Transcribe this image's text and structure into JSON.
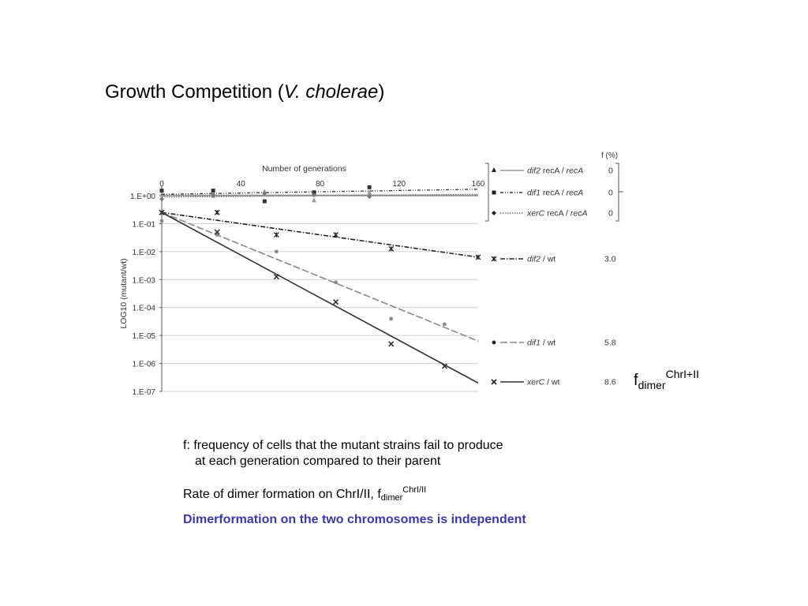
{
  "title": {
    "prefix": "Growth Competition (",
    "italic": "V. cholerae",
    "suffix": ")"
  },
  "fdimer_label": {
    "base": "f",
    "sub": "dimer",
    "sup": "ChrI+II"
  },
  "notes": {
    "line1": "f: frequency of cells that the mutant strains fail to produce",
    "line2": "at each generation compared to their parent"
  },
  "rate": {
    "text": "Rate of dimer formation on ChrI/II,  f",
    "sub": "dimer",
    "sup": "ChrI/II"
  },
  "conclusion": "Dimerformation on the two chromosomes is independent",
  "colors": {
    "conclusion": "#3a3aa0",
    "grid": "#d0d0d0",
    "dark": "#333333",
    "mid": "#888888"
  },
  "chart_data": {
    "type": "scatter",
    "xlabel": "Number of generations",
    "ylabel": "LOG10 (mutant/wt)",
    "xlim": [
      0,
      160
    ],
    "ylim": [
      -7,
      0.3
    ],
    "x_ticks": [
      0,
      40,
      80,
      120,
      160
    ],
    "y_ticks": [
      0,
      -1,
      -2,
      -3,
      -4,
      -5,
      -6,
      -7
    ],
    "y_tick_labels": [
      "1.E+00",
      "1.E-01",
      "1.E-02",
      "1.E-03",
      "1.E-04",
      "1.E-05",
      "1.E-06",
      "1.E-07"
    ],
    "legend_header": "f (%)",
    "grid": true,
    "series": [
      {
        "name_italic": "dif2",
        "name_rest": " recA / recA",
        "name_italic2": "recA",
        "f": "0",
        "marker": "triangle",
        "line_style": "solid",
        "color": "#999999",
        "points": [
          [
            0,
            0.02
          ],
          [
            26,
            -0.02
          ],
          [
            52,
            0.13
          ],
          [
            77,
            -0.18
          ],
          [
            105,
            0.1
          ]
        ],
        "fit": [
          [
            0,
            0.02
          ],
          [
            160,
            0.02
          ]
        ]
      },
      {
        "name_italic": "dif1",
        "name_rest": " recA / recA",
        "name_italic2": "recA",
        "f": "0",
        "marker": "square",
        "line_style": "dashdotdot",
        "color": "#333333",
        "points": [
          [
            0,
            0.18
          ],
          [
            26,
            0.18
          ],
          [
            52,
            -0.2
          ],
          [
            77,
            0.12
          ],
          [
            105,
            0.3
          ]
        ],
        "fit": [
          [
            0,
            0.05
          ],
          [
            160,
            0.23
          ]
        ]
      },
      {
        "name_italic": "xerC",
        "name_rest": " recA / recA",
        "name_italic2": "recA",
        "f": "0",
        "marker": "diamond",
        "line_style": "dotted",
        "color": "#777777",
        "points": [
          [
            0,
            -0.12
          ],
          [
            26,
            0.02
          ],
          [
            52,
            0.08
          ],
          [
            77,
            0.02
          ],
          [
            105,
            -0.03
          ]
        ],
        "fit": [
          [
            0,
            -0.05
          ],
          [
            160,
            0.05
          ]
        ]
      },
      {
        "name_italic": "dif2",
        "name_rest": " / wt",
        "name_italic2": "",
        "f": "3.0",
        "marker": "asterisk",
        "line_style": "dashdot",
        "color": "#222222",
        "points": [
          [
            0,
            -0.6
          ],
          [
            28,
            -0.6
          ],
          [
            58,
            -1.4
          ],
          [
            88,
            -1.4
          ],
          [
            116,
            -1.9
          ],
          [
            160,
            -2.2
          ]
        ],
        "fit": [
          [
            0,
            -0.6
          ],
          [
            160,
            -2.2
          ]
        ]
      },
      {
        "name_italic": "dif1",
        "name_rest": " / wt",
        "name_italic2": "",
        "f": "5.8",
        "marker": "circle",
        "line_style": "longdash",
        "color": "#888888",
        "points": [
          [
            0,
            -0.9
          ],
          [
            28,
            -1.4
          ],
          [
            58,
            -2.0
          ],
          [
            88,
            -3.1
          ],
          [
            116,
            -4.4
          ],
          [
            143,
            -4.6
          ]
        ],
        "fit": [
          [
            0,
            -0.6
          ],
          [
            160,
            -5.2
          ]
        ]
      },
      {
        "name_italic": "xerC",
        "name_rest": " / wt",
        "name_italic2": "",
        "f": "8.6",
        "marker": "x",
        "line_style": "solid",
        "color": "#333333",
        "points": [
          [
            0,
            -0.6
          ],
          [
            28,
            -1.3
          ],
          [
            58,
            -2.9
          ],
          [
            88,
            -3.8
          ],
          [
            116,
            -5.3
          ],
          [
            143,
            -6.1
          ]
        ],
        "fit": [
          [
            0,
            -0.6
          ],
          [
            160,
            -6.7
          ]
        ]
      }
    ]
  }
}
